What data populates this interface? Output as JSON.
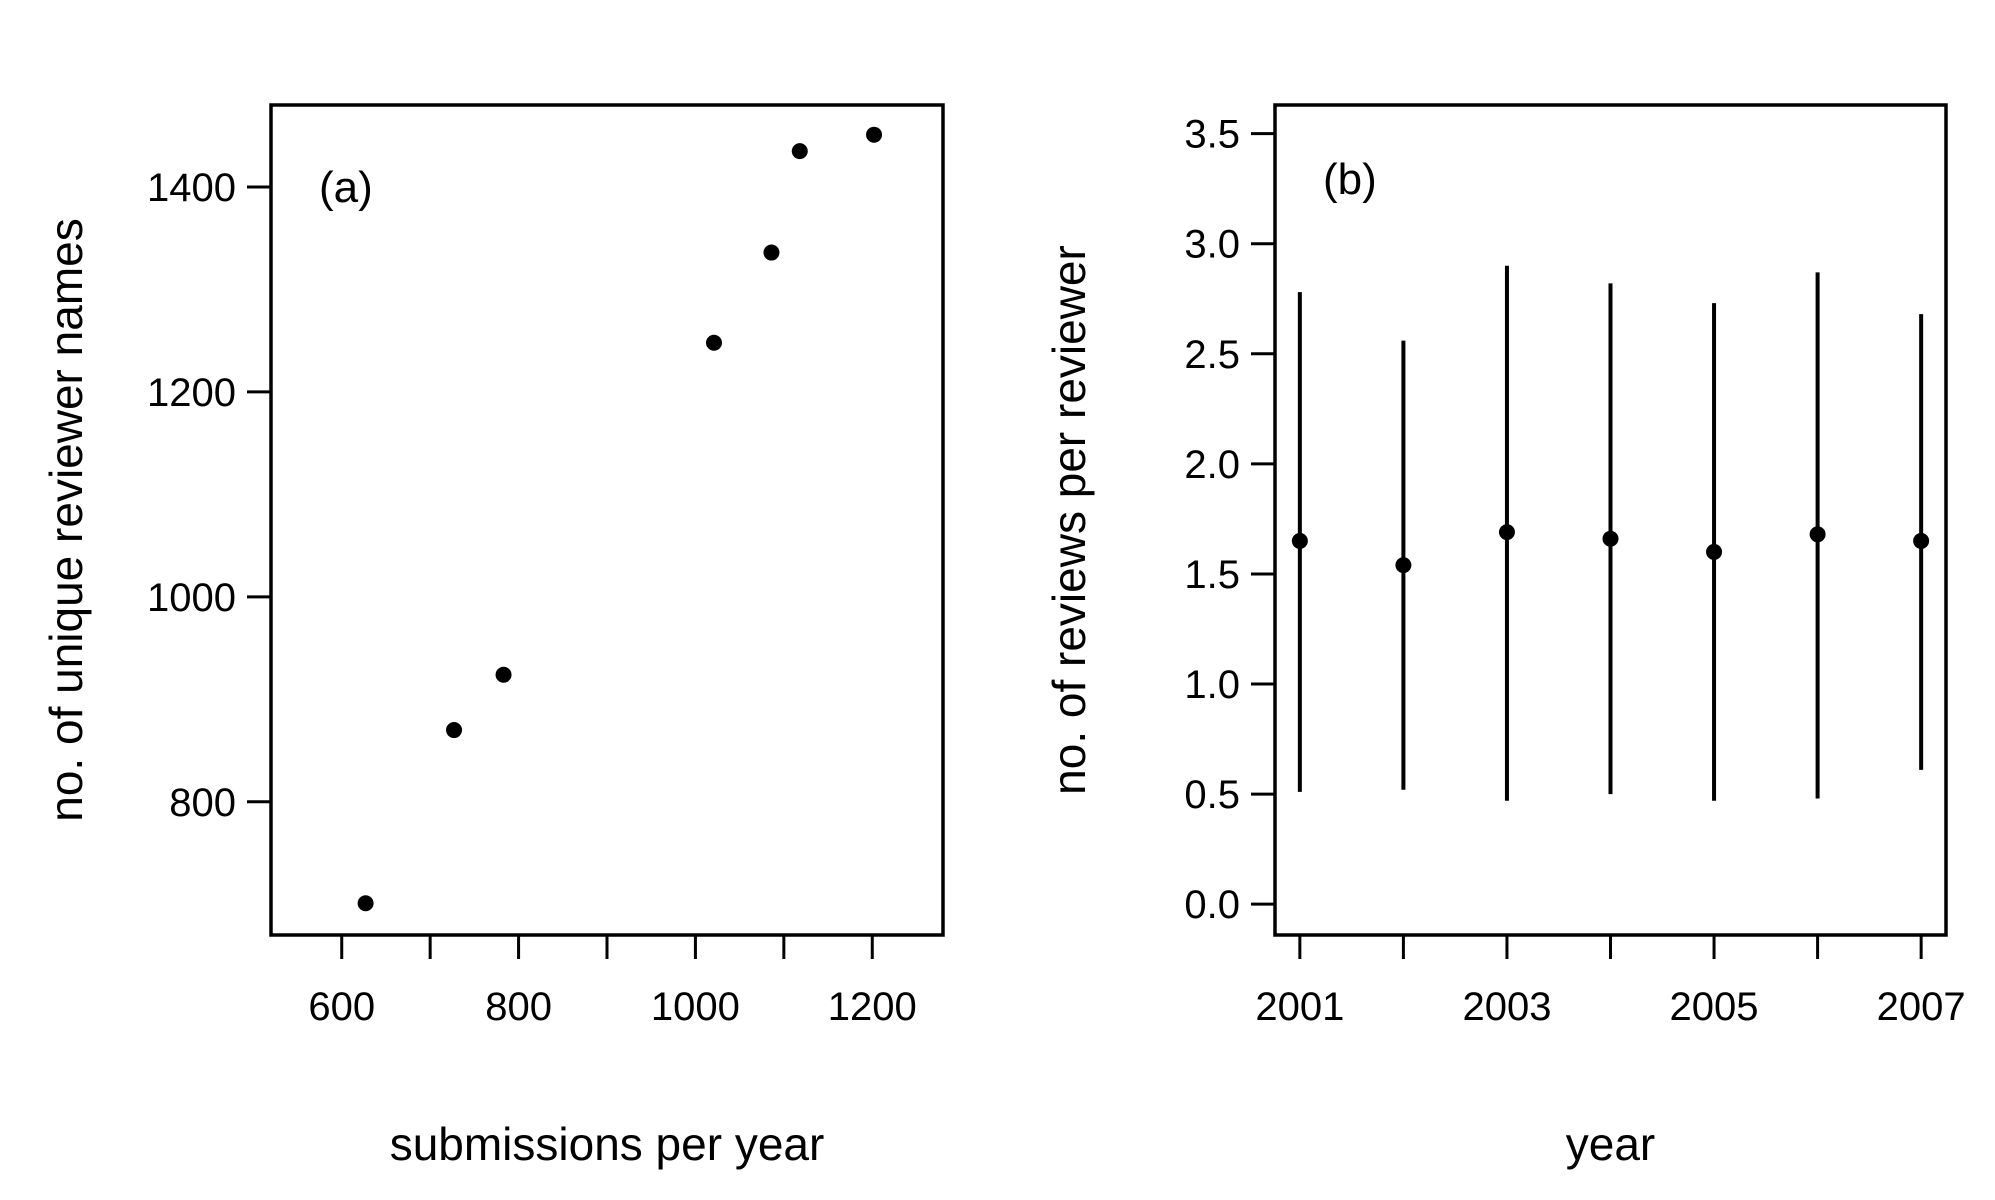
{
  "chart_data": [
    {
      "type": "scatter",
      "panel_label": "(a)",
      "xlabel": "submissions per year",
      "ylabel": "no. of unique reviewer names",
      "xlim": [
        520,
        1280
      ],
      "ylim": [
        670,
        1480
      ],
      "x_ticks": [
        600,
        700,
        800,
        900,
        1000,
        1100,
        1200
      ],
      "x_tick_labels": [
        "600",
        "",
        "800",
        "",
        "1000",
        "",
        "1200"
      ],
      "y_ticks": [
        800,
        1000,
        1200,
        1400
      ],
      "y_tick_labels": [
        "800",
        "1000",
        "1200",
        "1400"
      ],
      "points": [
        {
          "x": 627,
          "y": 701
        },
        {
          "x": 727,
          "y": 870
        },
        {
          "x": 783,
          "y": 924
        },
        {
          "x": 1021,
          "y": 1248
        },
        {
          "x": 1086,
          "y": 1336
        },
        {
          "x": 1118,
          "y": 1435
        },
        {
          "x": 1202,
          "y": 1451
        }
      ],
      "grid": false
    },
    {
      "type": "errorbar",
      "panel_label": "(b)",
      "xlabel": "year",
      "ylabel": "no. of reviews per reviewer",
      "xlim": [
        2000.76,
        2007.24
      ],
      "ylim": [
        -0.14,
        3.63
      ],
      "x_ticks": [
        2001,
        2002,
        2003,
        2004,
        2005,
        2006,
        2007
      ],
      "x_tick_labels": [
        "2001",
        "",
        "2003",
        "",
        "2005",
        "",
        "2007"
      ],
      "y_ticks": [
        0.0,
        0.5,
        1.0,
        1.5,
        2.0,
        2.5,
        3.0,
        3.5
      ],
      "y_tick_labels": [
        "0.0",
        "0.5",
        "1.0",
        "1.5",
        "2.0",
        "2.5",
        "3.0",
        "3.5"
      ],
      "points": [
        {
          "x": 2001,
          "y": 1.65,
          "low": 0.51,
          "high": 2.78
        },
        {
          "x": 2002,
          "y": 1.54,
          "low": 0.52,
          "high": 2.56
        },
        {
          "x": 2003,
          "y": 1.69,
          "low": 0.47,
          "high": 2.9
        },
        {
          "x": 2004,
          "y": 1.66,
          "low": 0.5,
          "high": 2.82
        },
        {
          "x": 2005,
          "y": 1.6,
          "low": 0.47,
          "high": 2.73
        },
        {
          "x": 2006,
          "y": 1.68,
          "low": 0.48,
          "high": 2.87
        },
        {
          "x": 2007,
          "y": 1.65,
          "low": 0.61,
          "high": 2.68
        }
      ],
      "grid": false
    }
  ]
}
